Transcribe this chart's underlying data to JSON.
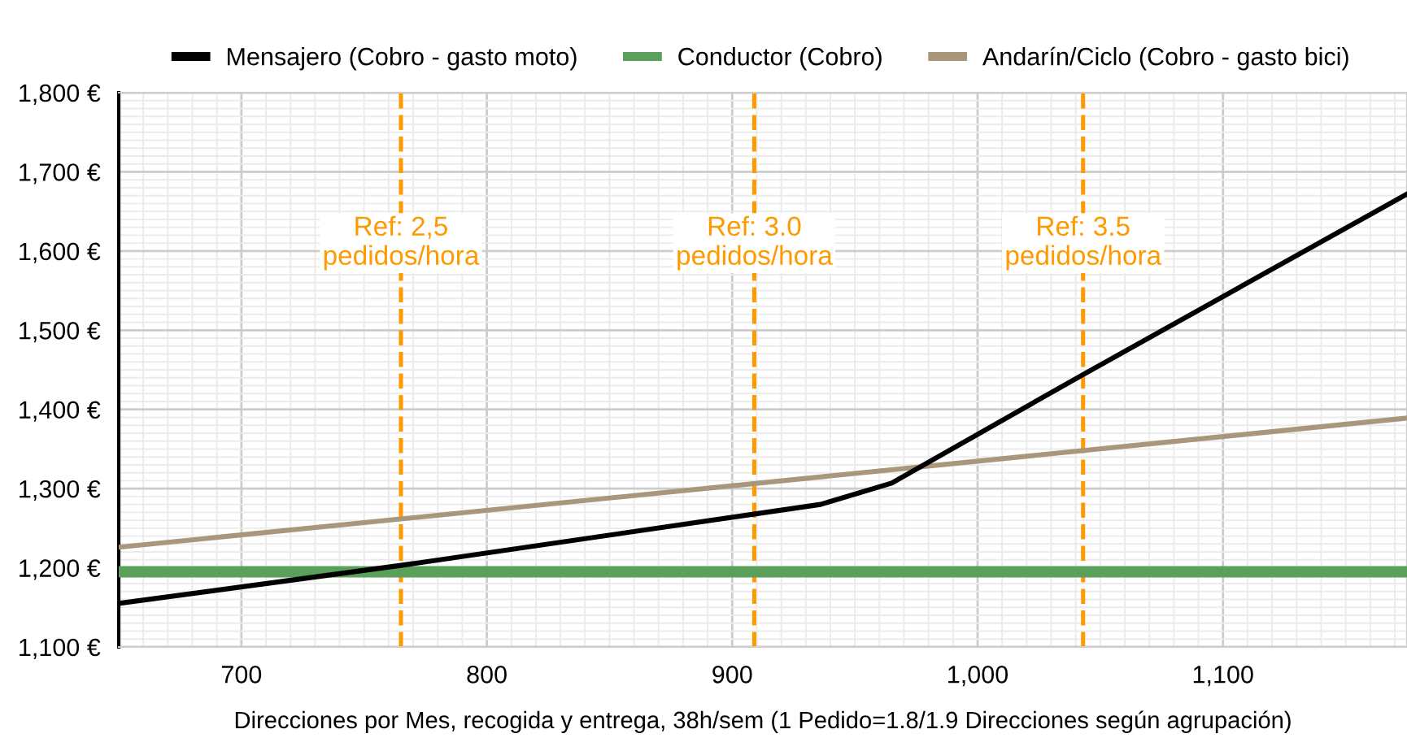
{
  "chart_data": {
    "type": "line",
    "xlabel": "Direcciones por Mes, recogida y entrega, 38h/sem (1 Pedido=1.8/1.9 Direcciones según agrupación)",
    "series": [
      {
        "name": "Mensajero (Cobro - gasto moto)",
        "color": "#000000",
        "x": [
          650,
          765,
          936,
          965,
          1043,
          1175
        ],
        "values": [
          1155,
          1203,
          1280,
          1307,
          1444,
          1672
        ]
      },
      {
        "name": "Conductor (Cobro)",
        "color": "#5aa05a",
        "x": [
          650,
          1175
        ],
        "values": [
          1195,
          1195
        ]
      },
      {
        "name": "Andarín/Ciclo (Cobro - gasto bici)",
        "color": "#a8977a",
        "x": [
          650,
          1175
        ],
        "values": [
          1226,
          1389
        ]
      }
    ],
    "xlim": [
      650,
      1175
    ],
    "ylim": [
      1100,
      1800
    ],
    "xticks": [
      700,
      800,
      900,
      {
        "value": 1000,
        "label": "1,000"
      },
      {
        "value": 1100,
        "label": "1,100"
      }
    ],
    "yticks": [
      {
        "value": 1100,
        "label": "1,100 €"
      },
      {
        "value": 1200,
        "label": "1,200 €"
      },
      {
        "value": 1300,
        "label": "1,300 €"
      },
      {
        "value": 1400,
        "label": "1,400 €"
      },
      {
        "value": 1500,
        "label": "1,500 €"
      },
      {
        "value": 1600,
        "label": "1,600 €"
      },
      {
        "value": 1700,
        "label": "1,700 €"
      },
      {
        "value": 1800,
        "label": "1,800 €"
      }
    ],
    "ref_lines": [
      {
        "axis": "x",
        "value": 765,
        "color": "#ff9900",
        "line_style": "dashed"
      },
      {
        "axis": "x",
        "value": 909,
        "color": "#ff9900",
        "line_style": "dashed"
      },
      {
        "axis": "x",
        "value": 1043,
        "color": "#ff9900",
        "line_style": "dashed"
      }
    ],
    "annotations": [
      {
        "text": "Ref: 2,5\npedidos/hora",
        "x": 765,
        "y": 1610
      },
      {
        "text": "Ref: 3.0\npedidos/hora",
        "x": 909,
        "y": 1610
      },
      {
        "text": "Ref: 3.5\npedidos/hora",
        "x": 1043,
        "y": 1610
      }
    ],
    "grid": true,
    "legend": "top",
    "marker": "none",
    "line_style": "solid"
  }
}
